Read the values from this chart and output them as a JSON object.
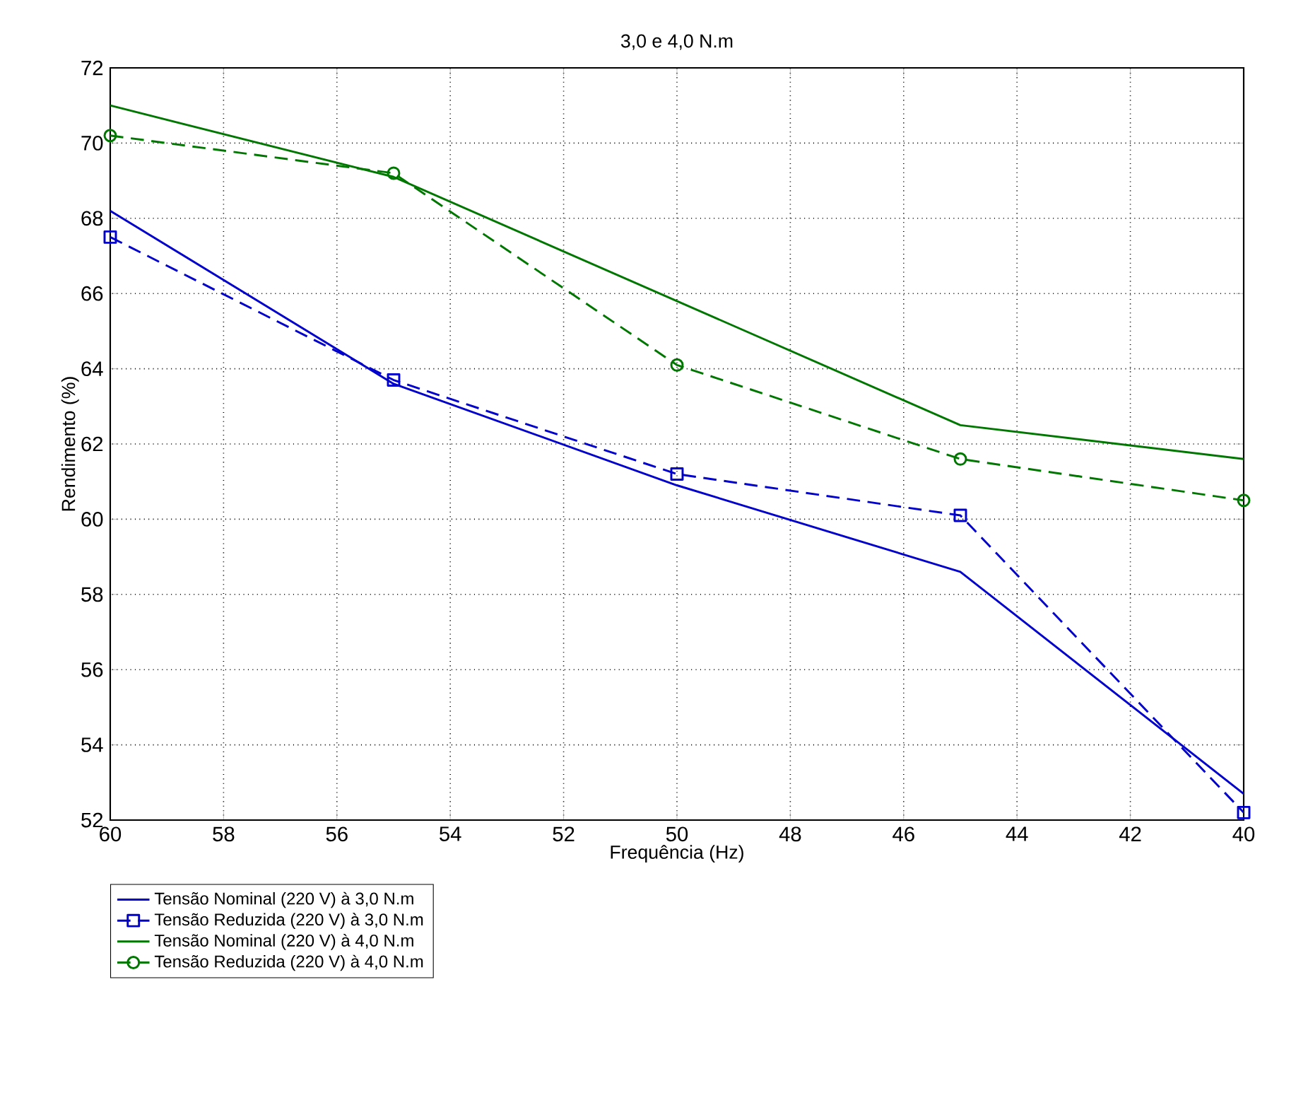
{
  "chart_data": {
    "type": "line",
    "title": "3,0 e 4,0 N.m",
    "xlabel": "Frequência (Hz)",
    "ylabel": "Rendimento (%)",
    "x": [
      60,
      55,
      50,
      45,
      40
    ],
    "series": [
      {
        "name": "Tensão Nominal (220 V) à 3,0 N.m",
        "color": "#0000cc",
        "line_style": "solid",
        "marker": "none",
        "values": [
          68.2,
          63.6,
          60.9,
          58.6,
          52.7
        ]
      },
      {
        "name": "Tensão Reduzida (220 V) à 3,0 N.m",
        "color": "#0000cc",
        "line_style": "dashed",
        "marker": "square",
        "values": [
          67.5,
          63.7,
          61.2,
          60.1,
          52.2
        ]
      },
      {
        "name": "Tensão Nominal (220 V) à 4,0 N.m",
        "color": "#007700",
        "line_style": "solid",
        "marker": "none",
        "values": [
          71.0,
          69.1,
          65.8,
          62.5,
          61.6
        ]
      },
      {
        "name": "Tensão Reduzida (220 V) à 4,0 N.m",
        "color": "#007700",
        "line_style": "dashed",
        "marker": "circle",
        "values": [
          70.2,
          69.2,
          64.1,
          61.6,
          60.5
        ]
      }
    ],
    "xlim": [
      60,
      40
    ],
    "ylim": [
      52,
      72
    ],
    "xticks": [
      60,
      58,
      56,
      54,
      52,
      50,
      48,
      46,
      44,
      42,
      40
    ],
    "yticks": [
      52,
      54,
      56,
      58,
      60,
      62,
      64,
      66,
      68,
      70,
      72
    ],
    "grid": true,
    "legend": "bottom left"
  }
}
